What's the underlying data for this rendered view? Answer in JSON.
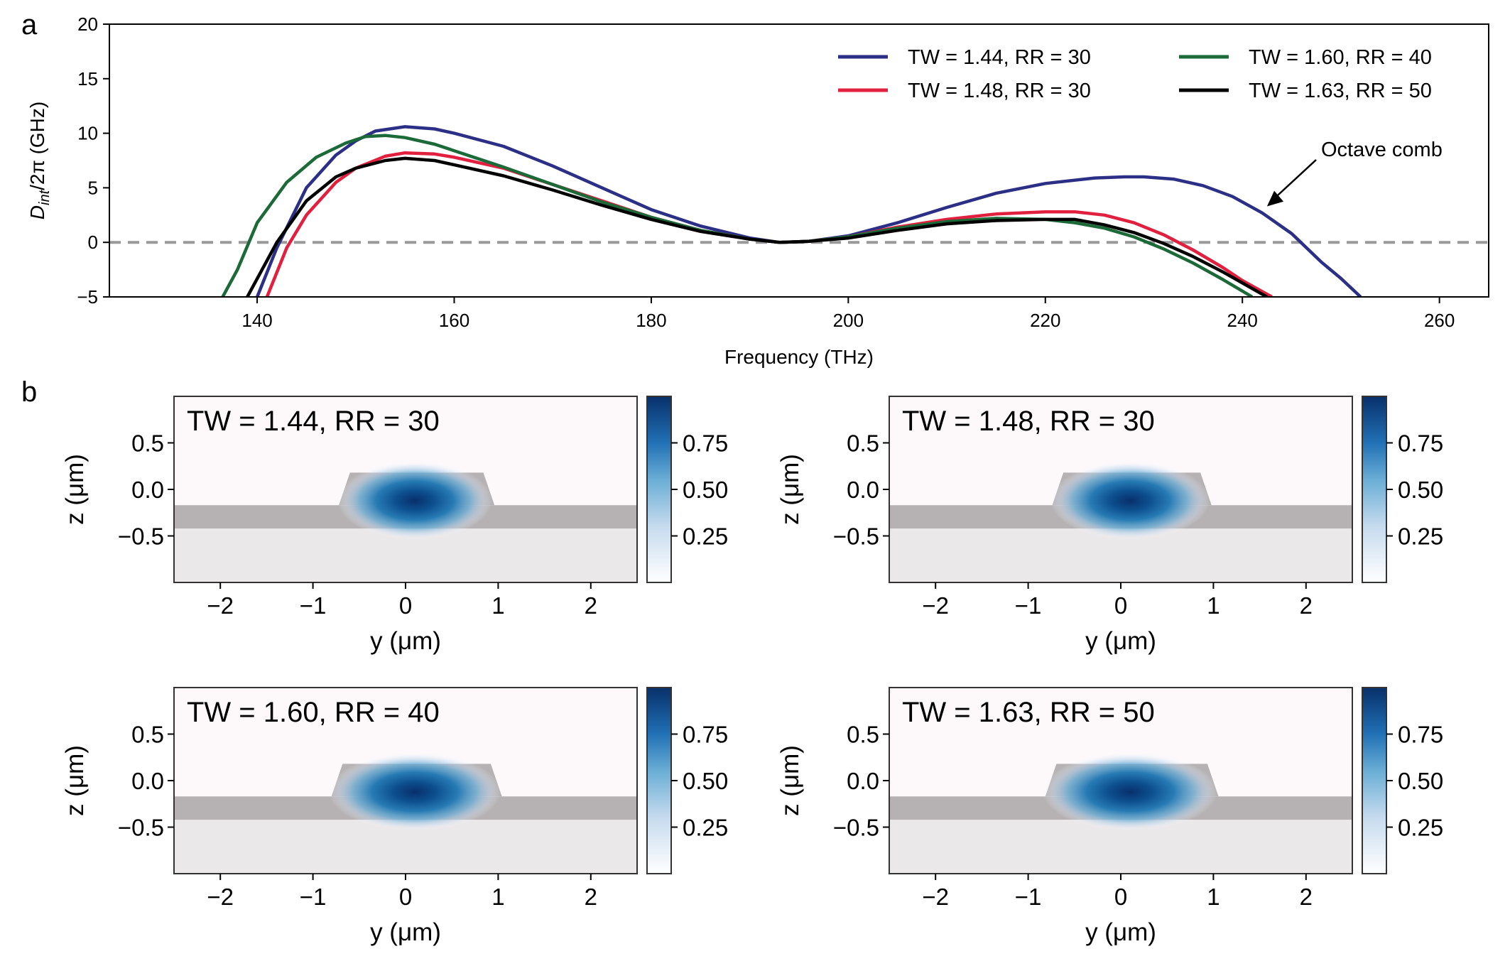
{
  "chart_data": [
    {
      "type": "line",
      "panel_label": "a",
      "xlabel": "Frequency (THz)",
      "ylabel_main": "D",
      "ylabel_sub": "int",
      "ylabel_rest": "/2π (GHz)",
      "xlim": [
        125,
        265
      ],
      "ylim": [
        -5,
        20
      ],
      "xticks": [
        140,
        160,
        180,
        200,
        220,
        240,
        260
      ],
      "yticks": [
        -5,
        0,
        5,
        10,
        15,
        20
      ],
      "grid": false,
      "legend_placement": "top-right",
      "zero_line": {
        "y": 0,
        "style": "dashed",
        "color": "#999999"
      },
      "annotation": {
        "text": "Octave comb",
        "points_to": {
          "x": 242.5,
          "y": 3.3
        }
      },
      "series": [
        {
          "name": "TW = 1.44, RR = 30",
          "color": "#2b2f86",
          "x": [
            140,
            142,
            145,
            148,
            150,
            152,
            155,
            158,
            160,
            165,
            170,
            175,
            180,
            185,
            190,
            193,
            196,
            200,
            205,
            210,
            215,
            220,
            225,
            228,
            230,
            233,
            236,
            239,
            242,
            245,
            248,
            250,
            252
          ],
          "y": [
            -5,
            -0.5,
            5,
            8,
            9.3,
            10.2,
            10.6,
            10.4,
            10,
            8.8,
            7,
            5,
            3,
            1.5,
            0.4,
            0,
            0.1,
            0.6,
            1.8,
            3.2,
            4.5,
            5.4,
            5.9,
            6,
            6,
            5.8,
            5.2,
            4.2,
            2.7,
            0.8,
            -1.8,
            -3.3,
            -5
          ]
        },
        {
          "name": "TW = 1.48, RR = 30",
          "color": "#e0203e",
          "x": [
            141,
            143,
            145,
            148,
            150,
            153,
            155,
            158,
            160,
            165,
            170,
            175,
            180,
            185,
            190,
            193,
            196,
            200,
            205,
            210,
            215,
            220,
            223,
            226,
            229,
            232,
            235,
            238,
            240,
            243
          ],
          "y": [
            -5,
            -0.5,
            2.5,
            5.5,
            6.8,
            7.9,
            8.2,
            8.1,
            7.8,
            6.8,
            5.3,
            3.8,
            2.3,
            1.1,
            0.3,
            0,
            0.1,
            0.5,
            1.4,
            2.1,
            2.6,
            2.8,
            2.8,
            2.5,
            1.8,
            0.7,
            -0.7,
            -2.3,
            -3.5,
            -5
          ]
        },
        {
          "name": "TW = 1.60, RR = 40",
          "color": "#1b6a37",
          "x": [
            136.5,
            138,
            140,
            143,
            146,
            149,
            151,
            153,
            155,
            158,
            160,
            165,
            170,
            175,
            180,
            185,
            190,
            193,
            196,
            200,
            205,
            210,
            215,
            220,
            223,
            226,
            229,
            232,
            235,
            238,
            241
          ],
          "y": [
            -5,
            -2.5,
            1.8,
            5.5,
            7.8,
            9.1,
            9.7,
            9.8,
            9.6,
            9,
            8.4,
            6.9,
            5.3,
            3.7,
            2.3,
            1.1,
            0.3,
            0,
            0.1,
            0.5,
            1.3,
            1.9,
            2.2,
            2.1,
            1.8,
            1.3,
            0.5,
            -0.6,
            -1.9,
            -3.4,
            -5
          ]
        },
        {
          "name": "TW = 1.63, RR = 50",
          "color": "#000000",
          "x": [
            139,
            140.5,
            142,
            145,
            148,
            150,
            153,
            155,
            158,
            160,
            165,
            170,
            175,
            180,
            185,
            190,
            193,
            196,
            200,
            205,
            210,
            215,
            220,
            223,
            226,
            229,
            232,
            235,
            238,
            242.5
          ],
          "y": [
            -5,
            -2.5,
            0,
            3.8,
            6,
            6.8,
            7.5,
            7.7,
            7.5,
            7.1,
            6.1,
            4.8,
            3.4,
            2.1,
            1,
            0.3,
            0,
            0.1,
            0.4,
            1.1,
            1.7,
            2,
            2.1,
            2.1,
            1.6,
            0.9,
            -0.1,
            -1.3,
            -2.7,
            -5
          ]
        }
      ]
    },
    {
      "type": "heatmap",
      "panel_label": "b",
      "title": "TW = 1.44, RR = 30",
      "xlabel": "y (μm)",
      "ylabel": "z (μm)",
      "xlim": [
        -2.5,
        2.5
      ],
      "ylim": [
        -1.0,
        1.0
      ],
      "xticks": [
        -2,
        -1,
        0,
        1,
        2
      ],
      "yticks": [
        0.5,
        0.0,
        -0.5
      ],
      "colorbar_ticks": [
        0.25,
        0.5,
        0.75
      ],
      "colorbar_range": [
        0,
        1
      ],
      "waveguide": {
        "top_width_um": 1.44,
        "slab_top": -0.17,
        "slab_bottom": -0.42,
        "ridge_top": 0.18
      },
      "mode_center": [
        0.1,
        -0.12
      ]
    },
    {
      "type": "heatmap",
      "title": "TW = 1.48, RR = 30",
      "xlabel": "y (μm)",
      "ylabel": "z (μm)",
      "xlim": [
        -2.5,
        2.5
      ],
      "ylim": [
        -1.0,
        1.0
      ],
      "xticks": [
        -2,
        -1,
        0,
        1,
        2
      ],
      "yticks": [
        0.5,
        0.0,
        -0.5
      ],
      "colorbar_ticks": [
        0.25,
        0.5,
        0.75
      ],
      "colorbar_range": [
        0,
        1
      ],
      "waveguide": {
        "top_width_um": 1.48,
        "slab_top": -0.17,
        "slab_bottom": -0.42,
        "ridge_top": 0.18
      },
      "mode_center": [
        0.1,
        -0.12
      ]
    },
    {
      "type": "heatmap",
      "title": "TW = 1.60, RR = 40",
      "xlabel": "y (μm)",
      "ylabel": "z (μm)",
      "xlim": [
        -2.5,
        2.5
      ],
      "ylim": [
        -1.0,
        1.0
      ],
      "xticks": [
        -2,
        -1,
        0,
        1,
        2
      ],
      "yticks": [
        0.5,
        0.0,
        -0.5
      ],
      "colorbar_ticks": [
        0.25,
        0.5,
        0.75
      ],
      "colorbar_range": [
        0,
        1
      ],
      "waveguide": {
        "top_width_um": 1.6,
        "slab_top": -0.17,
        "slab_bottom": -0.42,
        "ridge_top": 0.18
      },
      "mode_center": [
        0.1,
        -0.12
      ]
    },
    {
      "type": "heatmap",
      "title": "TW = 1.63, RR = 50",
      "xlabel": "y (μm)",
      "ylabel": "z (μm)",
      "xlim": [
        -2.5,
        2.5
      ],
      "ylim": [
        -1.0,
        1.0
      ],
      "xticks": [
        -2,
        -1,
        0,
        1,
        2
      ],
      "yticks": [
        0.5,
        0.0,
        -0.5
      ],
      "colorbar_ticks": [
        0.25,
        0.5,
        0.75
      ],
      "colorbar_range": [
        0,
        1
      ],
      "waveguide": {
        "top_width_um": 1.63,
        "slab_top": -0.17,
        "slab_bottom": -0.42,
        "ridge_top": 0.18
      },
      "mode_center": [
        0.1,
        -0.12
      ]
    }
  ]
}
